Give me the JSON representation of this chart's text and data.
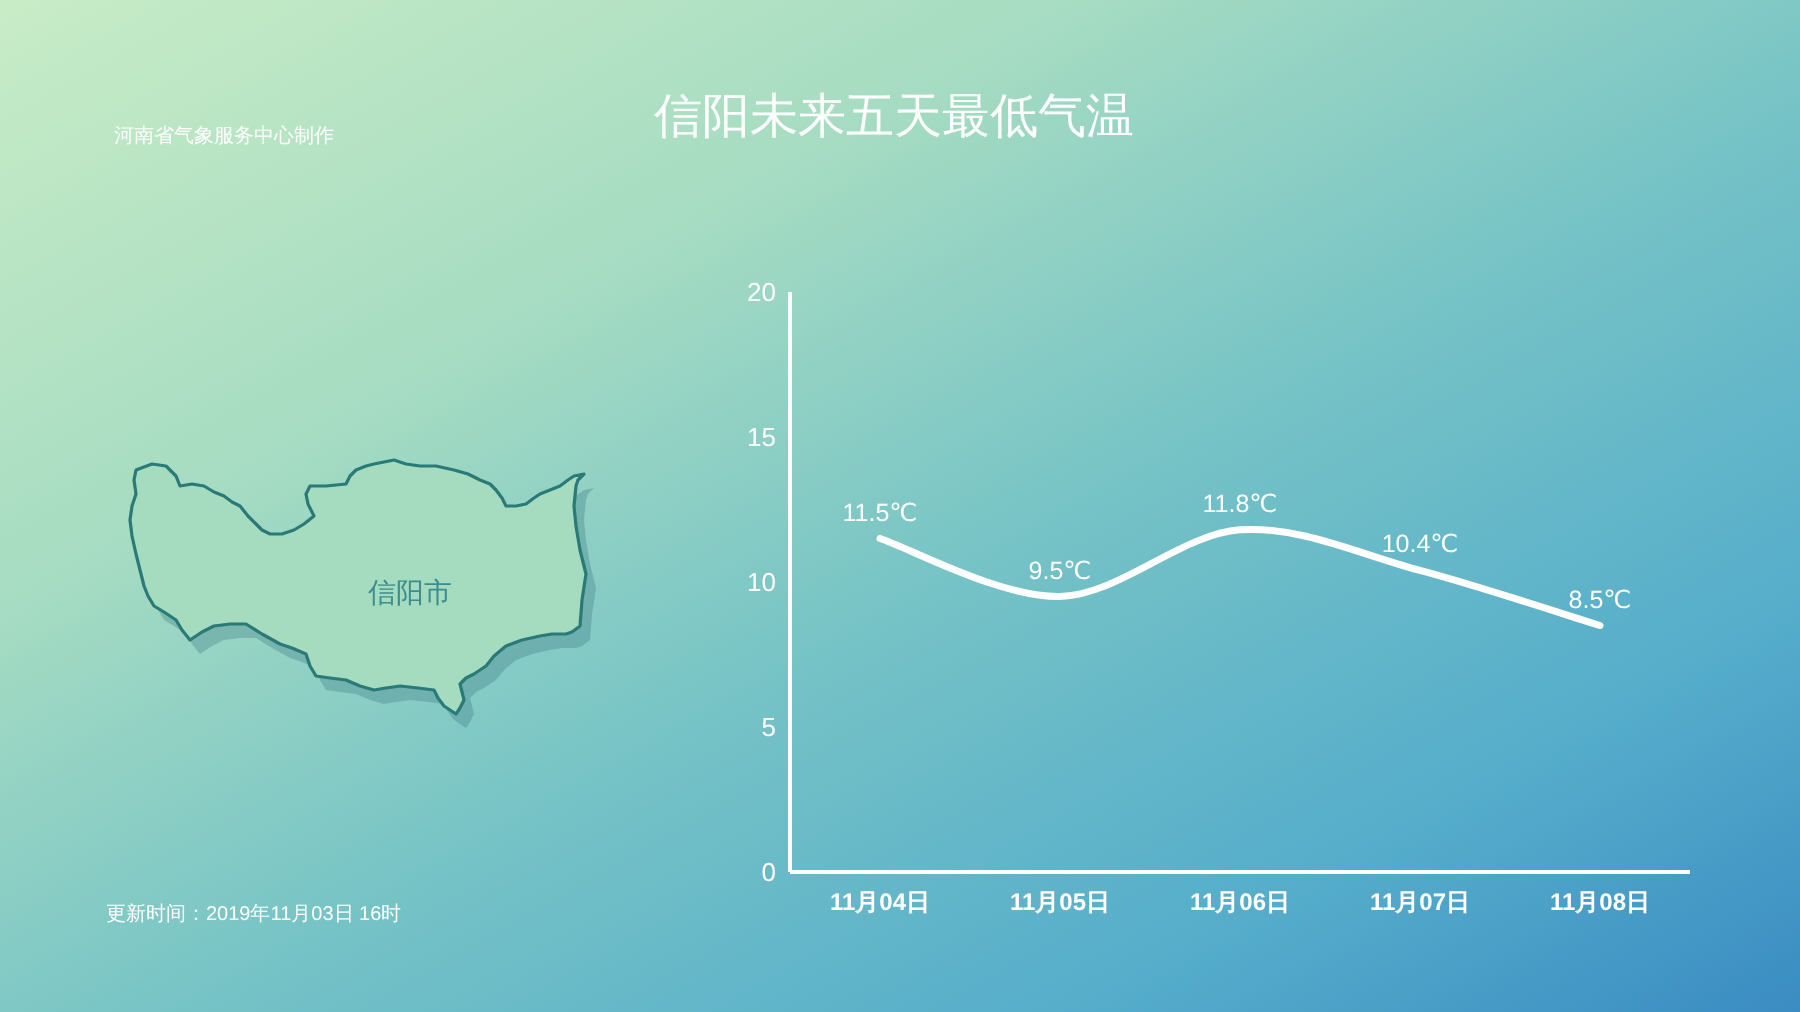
{
  "chart_data": {
    "type": "line",
    "title": "信阳未来五天最低气温",
    "categories": [
      "11月04日",
      "11月05日",
      "11月06日",
      "11月07日",
      "11月08日"
    ],
    "series": [
      {
        "color": "#ffffff",
        "line_style": "solid",
        "values": [
          11.5,
          9.5,
          11.8,
          10.4,
          8.5
        ],
        "value_labels": [
          "11.5℃",
          "9.5℃",
          "11.8℃",
          "10.4℃",
          "8.5℃"
        ]
      }
    ],
    "ylim": [
      0,
      20
    ],
    "yticks": [
      0,
      5,
      10,
      15,
      20
    ],
    "annotations": [
      "河南省气象服务中心制作",
      "信阳市",
      "更新时间：2019年11月03日 16时"
    ]
  }
}
